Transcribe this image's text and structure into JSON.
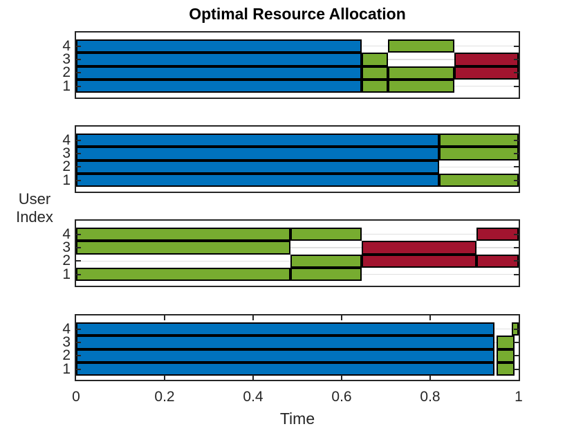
{
  "title": "Optimal Resource Allocation",
  "xlabel": "Time",
  "ylabel_lines": [
    "User",
    "Index"
  ],
  "y_tick_labels": [
    "4",
    "3",
    "2",
    "1"
  ],
  "x_ticks": [
    {
      "value": 0,
      "label": "0"
    },
    {
      "value": 0.2,
      "label": "0.2"
    },
    {
      "value": 0.4,
      "label": "0.4"
    },
    {
      "value": 0.6,
      "label": "0.6"
    },
    {
      "value": 0.8,
      "label": "0.8"
    },
    {
      "value": 1,
      "label": "1"
    }
  ],
  "colors": {
    "blue": "#0072BD",
    "green": "#77AC30",
    "red": "#A2142F",
    "bar_edge": "#000000",
    "axes_frame": "#262626",
    "tick": "#262626",
    "grid": "#e0e0e0",
    "background": "#ffffff"
  },
  "chart_data": {
    "type": "bar",
    "subtype": "horizontal-stacked-gantt",
    "title": "Optimal Resource Allocation",
    "xlabel": "Time",
    "ylabel": "User Index",
    "xlim": [
      0,
      1
    ],
    "x_tick_values": [
      0,
      0.2,
      0.4,
      0.6,
      0.8,
      1
    ],
    "y_categories_top_to_bottom": [
      4,
      3,
      2,
      1
    ],
    "grid": "horizontal-light-gray",
    "legend": "none",
    "subplots": [
      {
        "index": 1,
        "x_tick_marks": false,
        "rows": [
          {
            "user": 4,
            "segments": [
              {
                "start": 0,
                "end": 0.645,
                "color": "blue"
              },
              {
                "start": 0.705,
                "end": 0.855,
                "color": "green"
              }
            ]
          },
          {
            "user": 3,
            "segments": [
              {
                "start": 0,
                "end": 0.645,
                "color": "blue"
              },
              {
                "start": 0.645,
                "end": 0.705,
                "color": "green"
              },
              {
                "start": 0.855,
                "end": 1,
                "color": "red"
              }
            ]
          },
          {
            "user": 2,
            "segments": [
              {
                "start": 0,
                "end": 0.645,
                "color": "blue"
              },
              {
                "start": 0.645,
                "end": 0.705,
                "color": "green"
              },
              {
                "start": 0.705,
                "end": 0.855,
                "color": "green"
              },
              {
                "start": 0.855,
                "end": 1,
                "color": "red"
              }
            ]
          },
          {
            "user": 1,
            "segments": [
              {
                "start": 0,
                "end": 0.645,
                "color": "blue"
              },
              {
                "start": 0.645,
                "end": 0.705,
                "color": "green"
              },
              {
                "start": 0.705,
                "end": 0.855,
                "color": "green"
              }
            ]
          }
        ]
      },
      {
        "index": 2,
        "x_tick_marks": false,
        "rows": [
          {
            "user": 4,
            "segments": [
              {
                "start": 0,
                "end": 0.82,
                "color": "blue"
              },
              {
                "start": 0.82,
                "end": 1,
                "color": "green"
              }
            ]
          },
          {
            "user": 3,
            "segments": [
              {
                "start": 0,
                "end": 0.82,
                "color": "blue"
              },
              {
                "start": 0.82,
                "end": 1,
                "color": "green"
              }
            ]
          },
          {
            "user": 2,
            "segments": [
              {
                "start": 0,
                "end": 0.82,
                "color": "blue"
              }
            ]
          },
          {
            "user": 1,
            "segments": [
              {
                "start": 0,
                "end": 0.82,
                "color": "blue"
              },
              {
                "start": 0.82,
                "end": 1,
                "color": "green"
              }
            ]
          }
        ]
      },
      {
        "index": 3,
        "x_tick_marks": false,
        "rows": [
          {
            "user": 4,
            "segments": [
              {
                "start": 0,
                "end": 0.485,
                "color": "green"
              },
              {
                "start": 0.485,
                "end": 0.645,
                "color": "green"
              },
              {
                "start": 0.905,
                "end": 1,
                "color": "red"
              }
            ]
          },
          {
            "user": 3,
            "segments": [
              {
                "start": 0,
                "end": 0.485,
                "color": "green"
              },
              {
                "start": 0.645,
                "end": 0.905,
                "color": "red"
              }
            ]
          },
          {
            "user": 2,
            "segments": [
              {
                "start": 0.485,
                "end": 0.645,
                "color": "green"
              },
              {
                "start": 0.645,
                "end": 0.905,
                "color": "red"
              },
              {
                "start": 0.905,
                "end": 1,
                "color": "red"
              }
            ]
          },
          {
            "user": 1,
            "segments": [
              {
                "start": 0,
                "end": 0.485,
                "color": "green"
              },
              {
                "start": 0.485,
                "end": 0.645,
                "color": "green"
              }
            ]
          }
        ]
      },
      {
        "index": 4,
        "x_tick_marks": true,
        "rows": [
          {
            "user": 4,
            "segments": [
              {
                "start": 0,
                "end": 0.945,
                "color": "blue"
              },
              {
                "start": 0.985,
                "end": 1,
                "color": "green"
              }
            ]
          },
          {
            "user": 3,
            "segments": [
              {
                "start": 0,
                "end": 0.945,
                "color": "blue"
              },
              {
                "start": 0.95,
                "end": 0.99,
                "color": "green"
              }
            ]
          },
          {
            "user": 2,
            "segments": [
              {
                "start": 0,
                "end": 0.945,
                "color": "blue"
              },
              {
                "start": 0.95,
                "end": 0.99,
                "color": "green"
              }
            ]
          },
          {
            "user": 1,
            "segments": [
              {
                "start": 0,
                "end": 0.945,
                "color": "blue"
              },
              {
                "start": 0.95,
                "end": 0.99,
                "color": "green"
              }
            ]
          }
        ]
      }
    ]
  }
}
